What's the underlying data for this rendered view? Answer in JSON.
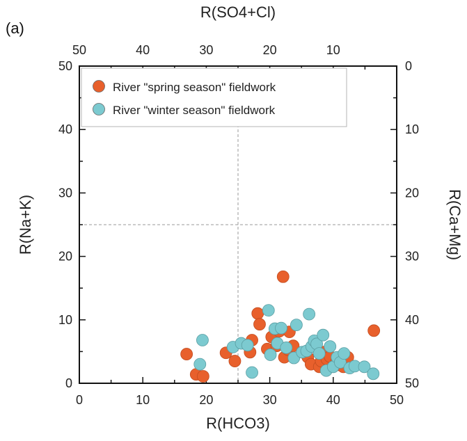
{
  "panel_label": "(a)",
  "colors": {
    "spring": "#e8602c",
    "winter": "#7ccad0",
    "axis": "#111111",
    "refline": "#9a9a9a"
  },
  "chart_data": {
    "type": "scatter",
    "xlabel": "R(HCO3)",
    "ylabel": "R(Na+K)",
    "top_label": "R(SO4+Cl)",
    "right_label": "R(Ca+Mg)",
    "xlim": [
      0,
      50
    ],
    "ylim": [
      0,
      50
    ],
    "x_ticks": [
      0,
      10,
      20,
      30,
      40,
      50
    ],
    "y_ticks": [
      0,
      10,
      20,
      30,
      40,
      50
    ],
    "top_ticks": [
      50,
      40,
      30,
      20,
      10
    ],
    "right_ticks": [
      0,
      10,
      20,
      30,
      40,
      50
    ],
    "reference_lines": {
      "x": 25,
      "y": 25
    },
    "legend_position": "top",
    "series": [
      {
        "name": "River \"spring season\" fieldwork",
        "color": "#e8602c",
        "points": [
          [
            16.9,
            4.6
          ],
          [
            18.4,
            1.4
          ],
          [
            19.5,
            1.1
          ],
          [
            23.1,
            4.8
          ],
          [
            24.5,
            3.5
          ],
          [
            26.9,
            4.9
          ],
          [
            27.2,
            6.8
          ],
          [
            28.1,
            11.0
          ],
          [
            28.4,
            9.3
          ],
          [
            29.6,
            5.4
          ],
          [
            30.3,
            7.3
          ],
          [
            31.1,
            5.9
          ],
          [
            31.5,
            8.2
          ],
          [
            32.1,
            16.8
          ],
          [
            32.3,
            4.1
          ],
          [
            32.9,
            5.3
          ],
          [
            33.1,
            8.1
          ],
          [
            33.7,
            5.9
          ],
          [
            35.5,
            4.9
          ],
          [
            36.0,
            4.1
          ],
          [
            36.5,
            3.0
          ],
          [
            37.0,
            5.8
          ],
          [
            37.8,
            2.6
          ],
          [
            38.1,
            3.5
          ],
          [
            38.5,
            4.9
          ],
          [
            39.0,
            3.8
          ],
          [
            39.5,
            4.2
          ],
          [
            40.5,
            3.4
          ],
          [
            41.0,
            2.9
          ],
          [
            41.6,
            2.6
          ],
          [
            42.3,
            4.1
          ],
          [
            46.4,
            8.3
          ]
        ]
      },
      {
        "name": "River \"winter season\" fieldwork",
        "color": "#7ccad0",
        "points": [
          [
            19.0,
            3.0
          ],
          [
            19.4,
            6.8
          ],
          [
            24.2,
            5.7
          ],
          [
            25.5,
            6.3
          ],
          [
            26.5,
            6.0
          ],
          [
            27.2,
            1.7
          ],
          [
            29.8,
            11.5
          ],
          [
            30.1,
            4.5
          ],
          [
            30.8,
            8.6
          ],
          [
            31.2,
            6.3
          ],
          [
            31.8,
            8.7
          ],
          [
            32.6,
            5.6
          ],
          [
            33.8,
            4.0
          ],
          [
            34.2,
            9.2
          ],
          [
            35.1,
            4.9
          ],
          [
            35.8,
            5.1
          ],
          [
            36.2,
            10.9
          ],
          [
            36.6,
            5.8
          ],
          [
            37.0,
            6.7
          ],
          [
            37.4,
            6.2
          ],
          [
            37.8,
            4.7
          ],
          [
            38.4,
            7.6
          ],
          [
            38.9,
            2.0
          ],
          [
            39.5,
            5.8
          ],
          [
            40.0,
            2.6
          ],
          [
            40.6,
            4.1
          ],
          [
            41.1,
            3.3
          ],
          [
            41.7,
            4.7
          ],
          [
            42.6,
            2.4
          ],
          [
            43.4,
            2.7
          ],
          [
            44.9,
            2.6
          ],
          [
            46.3,
            1.5
          ]
        ]
      }
    ]
  }
}
